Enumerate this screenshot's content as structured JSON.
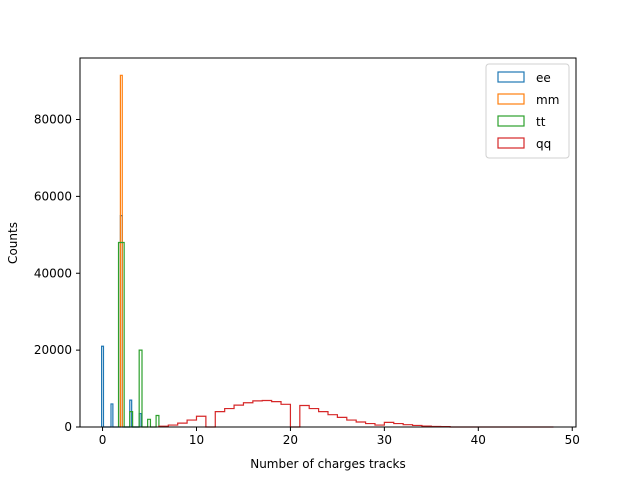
{
  "chart_data": {
    "type": "histogram",
    "xlabel": "Number of charges tracks",
    "ylabel": "Counts",
    "xlim": [
      -2.4,
      50.4
    ],
    "ylim": [
      0,
      96000
    ],
    "xticks": [
      0,
      10,
      20,
      30,
      40,
      50
    ],
    "yticks": [
      0,
      20000,
      40000,
      60000,
      80000
    ],
    "grid": false,
    "legend_position": "top-right",
    "series": [
      {
        "name": "ee",
        "color": "#1f77b4",
        "bins": [
          [
            -0.1,
            0.1,
            21000
          ],
          [
            0.1,
            0.9,
            0
          ],
          [
            0.9,
            1.1,
            6000
          ],
          [
            1.1,
            1.9,
            0
          ],
          [
            1.9,
            2.1,
            55000
          ],
          [
            2.1,
            2.9,
            0
          ],
          [
            2.9,
            3.1,
            7000
          ],
          [
            3.1,
            3.9,
            0
          ],
          [
            3.9,
            4.1,
            3500
          ]
        ]
      },
      {
        "name": "mm",
        "color": "#ff7f0e",
        "bins": [
          [
            1.9,
            2.1,
            91500
          ]
        ]
      },
      {
        "name": "tt",
        "color": "#2ca02c",
        "bins": [
          [
            1.7,
            2.3,
            48000
          ],
          [
            2.3,
            2.9,
            0
          ],
          [
            2.9,
            3.2,
            4000
          ],
          [
            3.2,
            3.9,
            0
          ],
          [
            3.9,
            4.2,
            20000
          ],
          [
            4.2,
            4.8,
            0
          ],
          [
            4.8,
            5.1,
            2000
          ],
          [
            5.1,
            5.7,
            0
          ],
          [
            5.7,
            6.0,
            3000
          ]
        ]
      },
      {
        "name": "qq",
        "color": "#d62728",
        "bins": [
          [
            6,
            7,
            200
          ],
          [
            7,
            8,
            500
          ],
          [
            8,
            9,
            1000
          ],
          [
            9,
            10,
            1800
          ],
          [
            10,
            11,
            2800
          ],
          [
            11,
            12,
            0
          ],
          [
            12,
            13,
            4000
          ],
          [
            13,
            14,
            4800
          ],
          [
            14,
            15,
            5700
          ],
          [
            15,
            16,
            6300
          ],
          [
            16,
            17,
            6800
          ],
          [
            17,
            18,
            6900
          ],
          [
            18,
            19,
            6600
          ],
          [
            19,
            20,
            5900
          ],
          [
            20,
            21,
            0
          ],
          [
            21,
            22,
            5600
          ],
          [
            22,
            23,
            4800
          ],
          [
            23,
            24,
            4000
          ],
          [
            24,
            25,
            3200
          ],
          [
            25,
            26,
            2500
          ],
          [
            26,
            27,
            1800
          ],
          [
            27,
            28,
            1300
          ],
          [
            28,
            29,
            900
          ],
          [
            29,
            30,
            500
          ],
          [
            30,
            31,
            1200
          ],
          [
            31,
            32,
            900
          ],
          [
            32,
            33,
            600
          ],
          [
            33,
            34,
            400
          ],
          [
            34,
            35,
            250
          ],
          [
            35,
            36,
            150
          ],
          [
            36,
            37,
            100
          ],
          [
            37,
            48,
            0
          ]
        ]
      }
    ]
  }
}
